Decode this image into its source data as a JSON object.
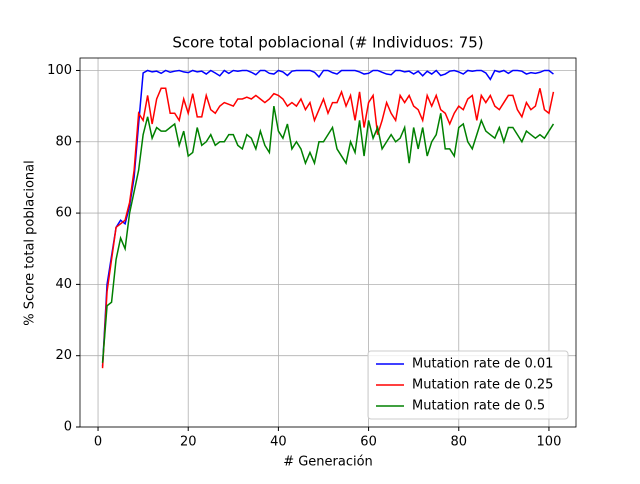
{
  "chart_data": {
    "type": "line",
    "title": "Score total poblacional (# Individuos: 75)",
    "x_label": "# Generación",
    "y_label": "% Score total poblacional",
    "x": [
      1,
      2,
      3,
      4,
      5,
      6,
      7,
      8,
      9,
      10,
      11,
      12,
      13,
      14,
      15,
      16,
      17,
      18,
      19,
      20,
      21,
      22,
      23,
      24,
      25,
      26,
      27,
      28,
      29,
      30,
      31,
      32,
      33,
      34,
      35,
      36,
      37,
      38,
      39,
      40,
      41,
      42,
      43,
      44,
      45,
      46,
      47,
      48,
      49,
      50,
      51,
      52,
      53,
      54,
      55,
      56,
      57,
      58,
      59,
      60,
      61,
      62,
      63,
      64,
      65,
      66,
      67,
      68,
      69,
      70,
      71,
      72,
      73,
      74,
      75,
      76,
      77,
      78,
      79,
      80,
      81,
      82,
      83,
      84,
      85,
      86,
      87,
      88,
      89,
      90,
      91,
      92,
      93,
      94,
      95,
      96,
      97,
      98,
      99,
      100,
      101
    ],
    "series": [
      {
        "name": "Mutation rate de 0.01",
        "color": "#0000ff",
        "values": [
          17,
          40,
          48,
          56,
          58,
          57,
          62,
          70,
          85,
          99.3,
          100,
          99.6,
          99.8,
          99.2,
          100,
          99.5,
          99.8,
          100,
          99.6,
          99.4,
          100,
          99.6,
          99.8,
          99,
          100,
          99.3,
          98.5,
          100,
          99.2,
          100,
          99.8,
          100,
          100,
          99.5,
          98.8,
          100,
          100,
          99.2,
          99,
          100,
          99.6,
          98.6,
          99.8,
          100,
          100,
          100,
          100,
          99.5,
          98.2,
          100,
          100,
          99.4,
          99,
          100,
          100,
          100,
          100,
          99.6,
          99,
          99.2,
          100,
          100,
          99.5,
          99,
          98.8,
          100,
          100,
          99.6,
          99.8,
          99,
          99.8,
          98.5,
          99.8,
          99,
          100,
          98.6,
          99,
          99.8,
          100,
          99.6,
          99,
          100,
          99.8,
          100,
          100,
          99.3,
          97.5,
          100,
          99.6,
          100,
          99.2,
          100,
          100,
          99.8,
          99,
          99.4,
          99.2,
          99.5,
          100,
          100,
          99
        ]
      },
      {
        "name": "Mutation rate de 0.25",
        "color": "#ff0000",
        "values": [
          16.5,
          38,
          47,
          56,
          57,
          58,
          63,
          72,
          88,
          86,
          93,
          85,
          92,
          95,
          95,
          88,
          88,
          86,
          92,
          88,
          93.5,
          87,
          87,
          93,
          89,
          88,
          90,
          91,
          90.5,
          90,
          92,
          92,
          92.5,
          92,
          93,
          92,
          91,
          92,
          93.5,
          93,
          92,
          90,
          91,
          90,
          92,
          89,
          91,
          86,
          89,
          92,
          88,
          91,
          91,
          94,
          90,
          93,
          86,
          94,
          84,
          91,
          93,
          82,
          86,
          91,
          88,
          86,
          93,
          91,
          93,
          90,
          89,
          86,
          93,
          90,
          93,
          89,
          88,
          85,
          88,
          90,
          89,
          92,
          93,
          86,
          93,
          91,
          93,
          90,
          89,
          91,
          93,
          93,
          89,
          87,
          91,
          89,
          90,
          95,
          89,
          88,
          94
        ]
      },
      {
        "name": "Mutation rate de 0.5",
        "color": "#008000",
        "values": [
          18,
          34,
          35,
          47,
          53,
          50,
          60,
          66,
          72,
          82,
          87,
          81,
          84,
          83,
          83,
          84,
          85,
          79,
          83,
          76,
          77,
          84,
          79,
          80,
          82,
          79,
          80,
          80,
          82,
          82,
          79,
          78,
          82,
          81,
          78,
          83,
          79,
          77,
          90,
          83,
          81,
          85,
          78,
          80,
          78,
          74,
          77,
          74,
          80,
          80,
          82,
          84,
          78,
          76,
          74,
          80,
          77,
          86,
          76,
          86,
          81,
          84,
          78,
          80,
          82,
          80,
          81,
          84,
          74,
          84,
          78,
          84,
          76,
          80,
          82,
          88,
          78,
          78,
          76,
          84,
          85,
          80,
          78,
          82,
          86,
          83,
          82,
          81,
          84,
          80,
          84,
          84,
          82,
          80,
          83,
          82,
          81,
          82,
          81,
          83,
          85
        ]
      }
    ],
    "xlim": [
      -4,
      106
    ],
    "ylim": [
      0,
      103.5
    ],
    "xticks": [
      0,
      20,
      40,
      60,
      80,
      100
    ],
    "yticks": [
      0,
      20,
      40,
      60,
      80,
      100
    ],
    "grid": true,
    "legend": "lower right"
  }
}
